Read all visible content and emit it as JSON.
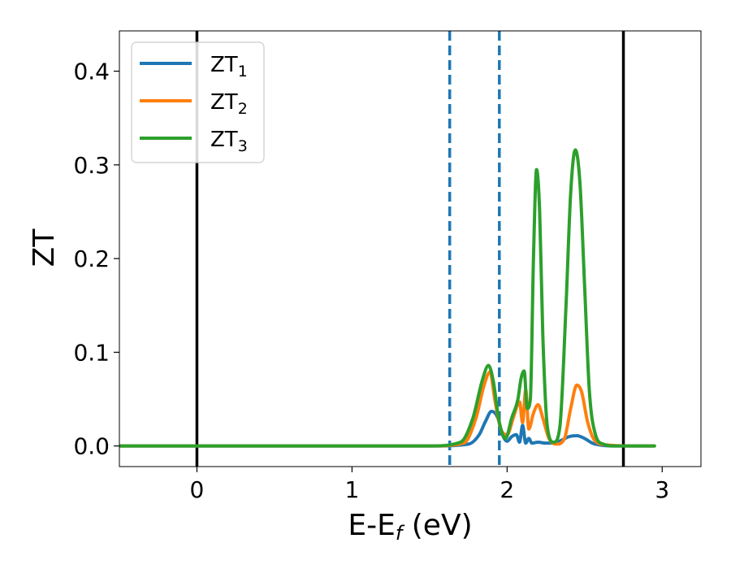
{
  "chart_data": {
    "type": "line",
    "xlabel": "E-E",
    "xlabel_sub": "f",
    "xlabel_unit": " (eV)",
    "ylabel": "ZT",
    "xlim": [
      -0.5,
      3.25
    ],
    "ylim": [
      -0.022,
      0.443
    ],
    "xticks": [
      0,
      1,
      2,
      3
    ],
    "xtick_labels": [
      "0",
      "1",
      "2",
      "3"
    ],
    "yticks": [
      0.0,
      0.1,
      0.2,
      0.3,
      0.4
    ],
    "ytick_labels": [
      "0.0",
      "0.1",
      "0.2",
      "0.3",
      "0.4"
    ],
    "grid": false,
    "legend_position": "top-left",
    "vlines": [
      {
        "x": 0.0,
        "style": "solid",
        "color": "#000000"
      },
      {
        "x": 1.63,
        "style": "dashed",
        "color": "#1f77b4"
      },
      {
        "x": 1.95,
        "style": "dashed",
        "color": "#1f77b4"
      },
      {
        "x": 2.75,
        "style": "solid",
        "color": "#000000"
      }
    ],
    "series": [
      {
        "name": "ZT",
        "sub": "1",
        "color": "#1f77b4",
        "x": [
          -0.5,
          1.5,
          1.75,
          1.82,
          1.86,
          1.9,
          1.94,
          1.97,
          2.0,
          2.03,
          2.06,
          2.08,
          2.1,
          2.12,
          2.14,
          2.16,
          2.2,
          2.25,
          2.3,
          2.35,
          2.4,
          2.45,
          2.5,
          2.55,
          2.6,
          2.7,
          2.8,
          2.95
        ],
        "y": [
          0.0,
          0.0,
          0.002,
          0.012,
          0.026,
          0.037,
          0.03,
          0.012,
          0.005,
          0.01,
          0.012,
          0.004,
          0.022,
          0.003,
          0.008,
          0.003,
          0.004,
          0.003,
          0.003,
          0.006,
          0.01,
          0.011,
          0.008,
          0.003,
          0.001,
          0.0,
          0.0,
          0.0
        ]
      },
      {
        "name": "ZT",
        "sub": "2",
        "color": "#ff7f0e",
        "x": [
          -0.5,
          1.5,
          1.72,
          1.8,
          1.85,
          1.89,
          1.92,
          1.96,
          2.0,
          2.04,
          2.08,
          2.1,
          2.12,
          2.14,
          2.17,
          2.2,
          2.23,
          2.27,
          2.32,
          2.37,
          2.41,
          2.45,
          2.48,
          2.52,
          2.57,
          2.65,
          2.8,
          2.95
        ],
        "y": [
          0.0,
          0.0,
          0.003,
          0.03,
          0.064,
          0.079,
          0.05,
          0.018,
          0.012,
          0.03,
          0.047,
          0.025,
          0.06,
          0.018,
          0.035,
          0.044,
          0.03,
          0.008,
          0.002,
          0.008,
          0.04,
          0.065,
          0.058,
          0.025,
          0.005,
          0.001,
          0.0,
          0.0
        ]
      },
      {
        "name": "ZT",
        "sub": "3",
        "color": "#2ca02c",
        "x": [
          -0.5,
          1.5,
          1.7,
          1.78,
          1.84,
          1.88,
          1.91,
          1.95,
          1.99,
          2.03,
          2.07,
          2.09,
          2.11,
          2.13,
          2.15,
          2.17,
          2.19,
          2.21,
          2.23,
          2.26,
          2.3,
          2.34,
          2.38,
          2.41,
          2.44,
          2.47,
          2.5,
          2.53,
          2.57,
          2.62,
          2.7,
          2.8,
          2.95
        ],
        "y": [
          0.0,
          0.0,
          0.004,
          0.03,
          0.07,
          0.086,
          0.07,
          0.025,
          0.008,
          0.03,
          0.05,
          0.072,
          0.08,
          0.04,
          0.05,
          0.2,
          0.295,
          0.25,
          0.12,
          0.02,
          0.004,
          0.02,
          0.15,
          0.27,
          0.316,
          0.28,
          0.17,
          0.06,
          0.012,
          0.002,
          0.0,
          0.0,
          0.0
        ]
      }
    ]
  }
}
